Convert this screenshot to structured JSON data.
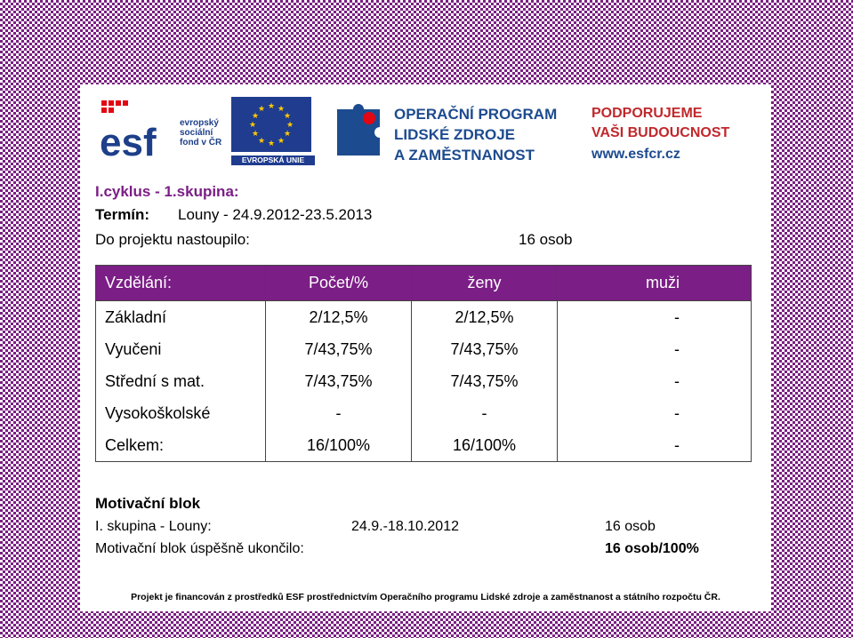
{
  "logos": {
    "esf_brand": "esf",
    "esf_lines": [
      "evropský",
      "sociální",
      "fond v ČR"
    ],
    "eu_label": "EVROPSKÁ UNIE",
    "op_lines": [
      "OPERAČNÍ PROGRAM",
      "LIDSKÉ ZDROJE",
      "A ZAMĚSTNANOST"
    ],
    "pod_lines": [
      "PODPORUJEME",
      "VAŠI BUDOUCNOST"
    ],
    "pod_url": "www.esfcr.cz"
  },
  "header": {
    "line1": "I.cyklus - 1.skupina:",
    "line2_label": "Termín:",
    "line2_value": "Louny - 24.9.2012-23.5.2013",
    "line3_label": "Do projektu nastoupilo:",
    "line3_value": "16 osob"
  },
  "table": {
    "headers": [
      "Vzdělání:",
      "Počet/%",
      "ženy",
      "muži"
    ],
    "rows": [
      [
        "Základní",
        "2/12,5%",
        "2/12,5%",
        "-"
      ],
      [
        "Vyučeni",
        "7/43,75%",
        "7/43,75%",
        "-"
      ],
      [
        "Střední s mat.",
        "7/43,75%",
        "7/43,75%",
        "-"
      ],
      [
        "Vysokoškolské",
        "-",
        "-",
        "-"
      ],
      [
        "Celkem:",
        "16/100%",
        "16/100%",
        "-"
      ]
    ]
  },
  "motivation": {
    "title": "Motivační blok",
    "group_label": "I. skupina - Louny:",
    "group_dates": "24.9.-18.10.2012",
    "group_count": "16 osob",
    "success_label": "Motivační blok úspěšně ukončilo:",
    "success_value": "16 osob/100%"
  },
  "footer": "Projekt je financován z prostředků ESF prostřednictvím Operačního programu Lidské zdroje a zaměstnanost a státního rozpočtu ČR.",
  "colors": {
    "accent": "#7b1e86",
    "esf_blue": "#1d3f8a",
    "red": "#c0282c"
  }
}
